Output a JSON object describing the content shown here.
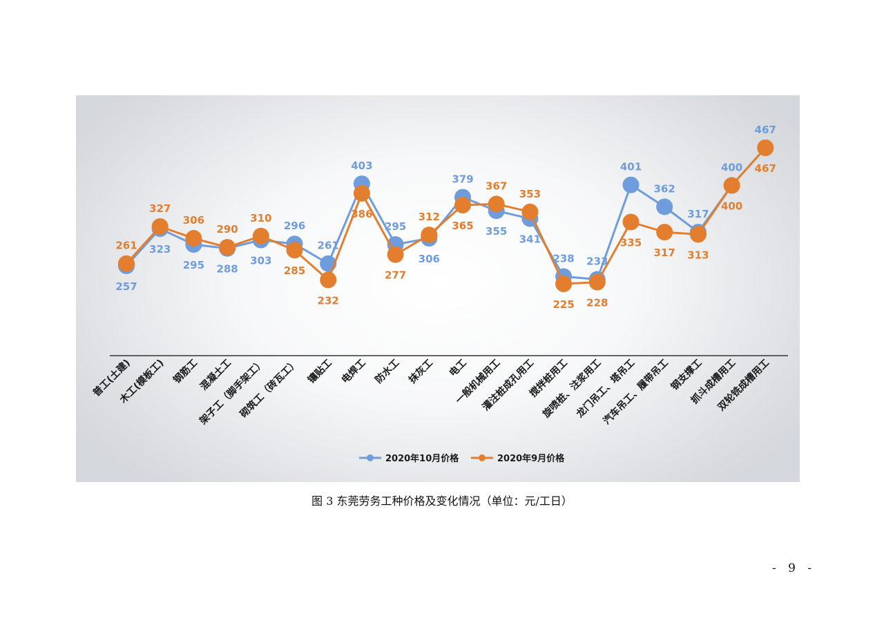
{
  "chart_data": {
    "type": "line",
    "categories": [
      "普工(土建)",
      "木工(模板工)",
      "钢筋工",
      "混凝土工",
      "架子工（脚手架工）",
      "砌筑工（砖瓦工）",
      "镶贴工",
      "电焊工",
      "防水工",
      "抹灰工",
      "电工",
      "一般机械用工",
      "灌注桩成孔用工",
      "搅拌桩用工",
      "旋喷桩、注浆用工",
      "龙门吊工、塔吊工",
      "汽车吊工、履带吊工",
      "钢支撑工",
      "抓斗成槽用工",
      "双轮铣成槽用工"
    ],
    "series": [
      {
        "name": "2020年10月价格",
        "color": "#6f9cdc",
        "values": [
          257,
          323,
          295,
          288,
          303,
          296,
          261,
          403,
          295,
          306,
          379,
          355,
          341,
          238,
          233,
          401,
          362,
          317,
          400,
          467
        ]
      },
      {
        "name": "2020年9月价格",
        "color": "#e37e2f",
        "values": [
          261,
          327,
          306,
          290,
          310,
          285,
          232,
          386,
          277,
          312,
          365,
          367,
          353,
          225,
          228,
          335,
          317,
          313,
          400,
          467
        ]
      }
    ],
    "ylim": [
      150,
      500
    ],
    "grid": false,
    "legend_position": "bottom"
  },
  "figure": {
    "caption": "图 3   东莞劳务工种价格及变化情况（单位：元/工日）"
  },
  "page": {
    "number": "- 9 -"
  }
}
